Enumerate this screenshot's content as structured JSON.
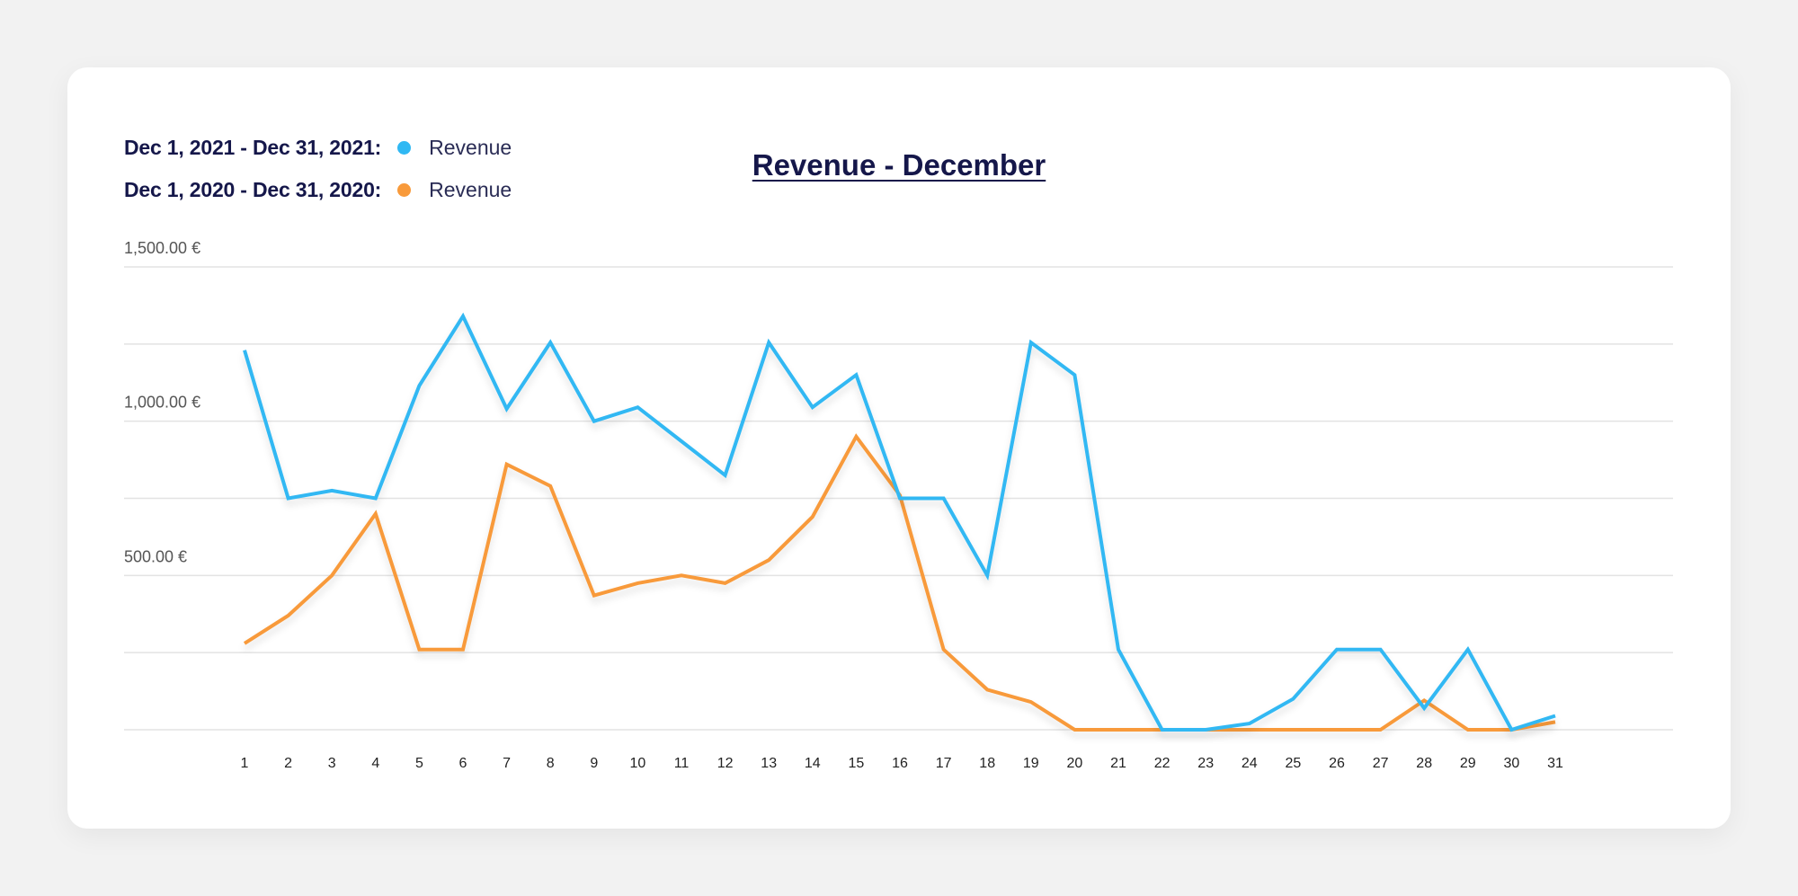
{
  "legend": {
    "items": [
      {
        "range": "Dec 1, 2021 - Dec  31, 2021:",
        "series": "Revenue",
        "color": "#30b8f3"
      },
      {
        "range": "Dec  1, 2020 - Dec  31, 2020:",
        "series": "Revenue",
        "color": "#f89a3b"
      }
    ]
  },
  "chart_data": {
    "type": "line",
    "title": "Revenue - December",
    "xlabel": "",
    "ylabel": "",
    "x": [
      1,
      2,
      3,
      4,
      5,
      6,
      7,
      8,
      9,
      10,
      11,
      12,
      13,
      14,
      15,
      16,
      17,
      18,
      19,
      20,
      21,
      22,
      23,
      24,
      25,
      26,
      27,
      28,
      29,
      30,
      31
    ],
    "ylim": [
      0,
      1500
    ],
    "yticks": [
      {
        "value": 500,
        "label": "500.00 €"
      },
      {
        "value": 1000,
        "label": "1,000.00 €"
      },
      {
        "value": 1500,
        "label": "1,500.00 €"
      }
    ],
    "gridlines": [
      0,
      250,
      500,
      750,
      1000,
      1250,
      1500
    ],
    "grid": true,
    "legend_position": "top-left",
    "series": [
      {
        "name": "Revenue",
        "period": "Dec 1, 2021 - Dec 31, 2021",
        "color": "#30b8f3",
        "values": [
          1230,
          750,
          775,
          750,
          1115,
          1340,
          1040,
          1255,
          1000,
          1045,
          935,
          825,
          1255,
          1045,
          1150,
          750,
          750,
          500,
          1255,
          1150,
          260,
          0,
          0,
          20,
          100,
          260,
          260,
          70,
          260,
          0,
          45
        ]
      },
      {
        "name": "Revenue",
        "period": "Dec 1, 2020 - Dec 31, 2020",
        "color": "#f89a3b",
        "values": [
          280,
          370,
          500,
          700,
          260,
          260,
          860,
          790,
          435,
          475,
          500,
          475,
          550,
          690,
          950,
          760,
          260,
          130,
          90,
          0,
          0,
          0,
          0,
          0,
          0,
          0,
          0,
          95,
          0,
          0,
          25
        ]
      }
    ]
  }
}
